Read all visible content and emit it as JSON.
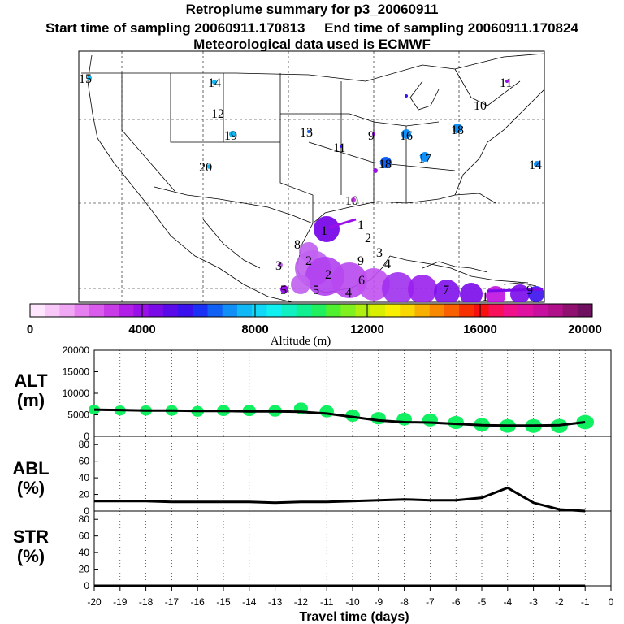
{
  "header": {
    "title": "Retroplume summary for p3_20060911",
    "start_label": "Start time of sampling 20060911.170813",
    "end_label": "End time of sampling 20060911.170824",
    "met_label": "Meteorological data used is ECMWF"
  },
  "colorbar": {
    "title": "Altitude (m)",
    "ticks": [
      "0",
      "4000",
      "8000",
      "12000",
      "16000",
      "20000"
    ],
    "colors": [
      "#ffe6ff",
      "#f8c8f8",
      "#f0a8f4",
      "#e680f0",
      "#d95cec",
      "#c83ce8",
      "#b01ee8",
      "#9a10e8",
      "#7a0ae8",
      "#5a0aea",
      "#3a10ee",
      "#1a30f4",
      "#1060f6",
      "#1090f6",
      "#10b8f6",
      "#10d8f6",
      "#10f0f0",
      "#10f0c0",
      "#10f090",
      "#20f060",
      "#50f030",
      "#80f020",
      "#b0f010",
      "#d8f000",
      "#f8f000",
      "#f8d800",
      "#f8b000",
      "#f88800",
      "#f86000",
      "#f83000",
      "#f81010",
      "#f8105a",
      "#f0108a",
      "#e010a0",
      "#c810a0",
      "#b0108a",
      "#901070",
      "#701060"
    ]
  },
  "map": {
    "cluster_labels": [
      "15",
      "14",
      "12",
      "11",
      "10",
      "19",
      "13",
      "9",
      "16",
      "18",
      "11",
      "20",
      "18",
      "17",
      "14",
      "10",
      "1",
      "2",
      "3",
      "4",
      "8",
      "3",
      "9",
      "6",
      "5",
      "7",
      "2",
      "2",
      "9",
      "5",
      "4",
      "1",
      "1"
    ],
    "plume_numbers": [
      "1",
      "2",
      "3",
      "4",
      "5",
      "6",
      "7",
      "8",
      "9",
      "10",
      "11",
      "12",
      "13",
      "14",
      "15",
      "16",
      "17",
      "18",
      "19",
      "20"
    ]
  },
  "chart_data": [
    {
      "type": "line",
      "panel": "ALT",
      "ylabel": "ALT (m)",
      "ylim": [
        0,
        20000
      ],
      "yticks": [
        0,
        5000,
        10000,
        15000,
        20000
      ],
      "x": [
        -20,
        -19,
        -18,
        -17,
        -16,
        -15,
        -14,
        -13,
        -12,
        -11,
        -10,
        -9,
        -8,
        -7,
        -6,
        -5,
        -4,
        -3,
        -2,
        -1
      ],
      "mean_altitude": [
        6200,
        6100,
        6000,
        6000,
        5900,
        5900,
        5800,
        5800,
        5700,
        5300,
        4500,
        3700,
        3300,
        3200,
        2900,
        2600,
        2500,
        2500,
        2600,
        3300
      ],
      "cluster_altitude": [
        6200,
        6000,
        6000,
        6000,
        5800,
        6000,
        6000,
        5900,
        6500,
        5800,
        4800,
        4200,
        4000,
        3800,
        3200,
        2700,
        2400,
        2400,
        2400,
        3300
      ],
      "cluster_color": "#10f060"
    },
    {
      "type": "line",
      "panel": "ABL",
      "ylabel": "ABL (%)",
      "ylim": [
        0,
        90
      ],
      "yticks": [
        0,
        20,
        40,
        60,
        80
      ],
      "x": [
        -20,
        -19,
        -18,
        -17,
        -16,
        -15,
        -14,
        -13,
        -12,
        -11,
        -10,
        -9,
        -8,
        -7,
        -6,
        -5,
        -4,
        -3,
        -2,
        -1
      ],
      "values": [
        12,
        12,
        12,
        11,
        11,
        11,
        11,
        10,
        11,
        11,
        12,
        13,
        14,
        13,
        13,
        16,
        28,
        10,
        2,
        0
      ]
    },
    {
      "type": "line",
      "panel": "STR",
      "ylabel": "STR (%)",
      "ylim": [
        0,
        90
      ],
      "yticks": [
        0,
        20,
        40,
        60,
        80
      ],
      "x": [
        -20,
        -19,
        -18,
        -17,
        -16,
        -15,
        -14,
        -13,
        -12,
        -11,
        -10,
        -9,
        -8,
        -7,
        -6,
        -5,
        -4,
        -3,
        -2,
        -1
      ],
      "values": [
        0,
        0,
        0,
        0,
        0,
        0,
        0,
        0,
        0,
        0,
        0,
        0,
        0,
        0,
        0,
        0,
        0,
        0,
        0,
        0
      ]
    }
  ],
  "xaxis": {
    "label": "Travel time (days)",
    "ticks": [
      "-20",
      "-19",
      "-18",
      "-17",
      "-16",
      "-15",
      "-14",
      "-13",
      "-12",
      "-11",
      "-10",
      "-9",
      "-8",
      "-7",
      "-6",
      "-5",
      "-4",
      "-3",
      "-2",
      "-1",
      "0"
    ]
  },
  "panel_labels": {
    "alt_top": "ALT",
    "alt_bottom": "(m)",
    "abl_top": "ABL",
    "abl_bottom": "(%)",
    "str_top": "STR",
    "str_bottom": "(%)"
  }
}
